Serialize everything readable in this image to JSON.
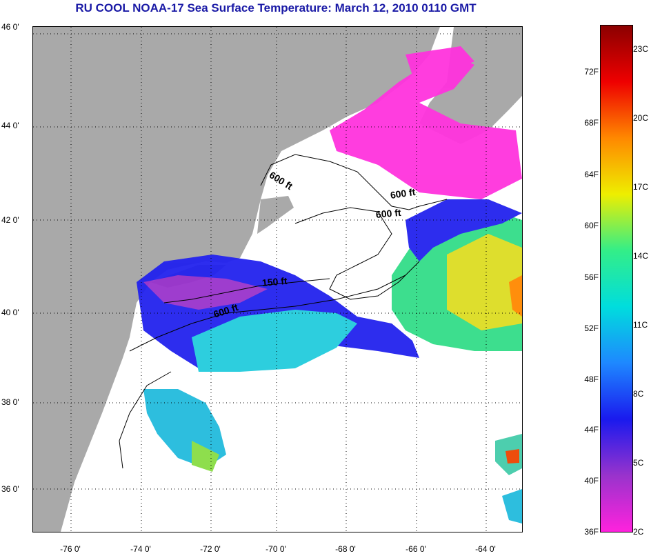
{
  "title": "RU COOL  NOAA-17  Sea Surface Temperature:  March 12, 2010 0110 GMT",
  "map": {
    "lat_ticks": [
      "46 0'",
      "44 0'",
      "42 0'",
      "40 0'",
      "38 0'",
      "36 0'"
    ],
    "lon_ticks": [
      "-76 0'",
      "-74 0'",
      "-72 0'",
      "-70 0'",
      "-68 0'",
      "-66 0'",
      "-64 0'"
    ],
    "contour_labels": [
      "600 ft",
      "600 ft",
      "600 ft",
      "150 ft",
      "600 ft"
    ],
    "colors": {
      "land": "#a9a9a9",
      "water": "#ffffff",
      "grid": "#000000"
    }
  },
  "colorbar": {
    "fahrenheit_ticks": [
      "72F",
      "68F",
      "64F",
      "60F",
      "56F",
      "52F",
      "48F",
      "44F",
      "40F",
      "36F"
    ],
    "celsius_ticks": [
      "23C",
      "20C",
      "17C",
      "14C",
      "11C",
      "8C",
      "5C",
      "2C"
    ],
    "gradient": [
      "#ff22dd",
      "#9933cc",
      "#1a1aee",
      "#1e88ff",
      "#00dddd",
      "#33ee88",
      "#eeee00",
      "#ff8800",
      "#ee0000",
      "#8b0000"
    ]
  }
}
